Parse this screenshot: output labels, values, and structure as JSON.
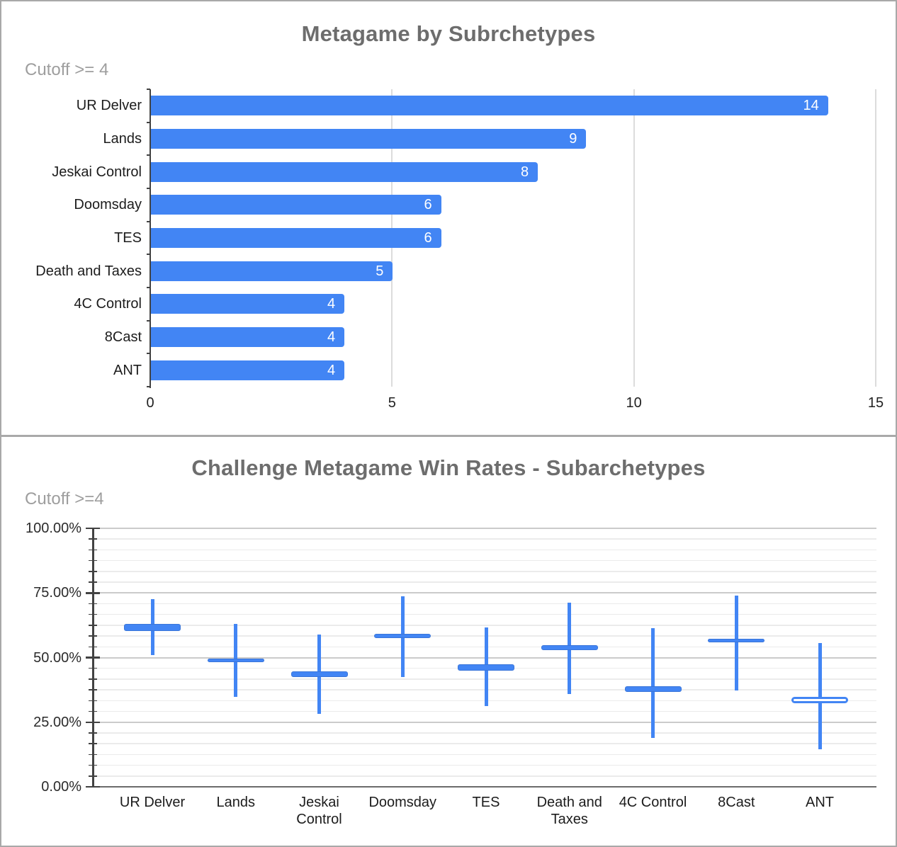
{
  "colors": {
    "accent_blue": "#4285f4",
    "candle_border": "#3b76d9",
    "title": "#6d6d6d",
    "subtitle": "#9e9e9e",
    "axis_text": "#212121",
    "axis_line": "#424242",
    "grid_minor": "#ebebeb",
    "grid_major": "#cbcbcb",
    "grid_light_top": "#dcdcdc",
    "baseline": "#6b6b6b",
    "bar_value_text": "#ffffff",
    "panel_border": "#a9a9a9"
  },
  "chart_data": [
    {
      "type": "bar",
      "orientation": "horizontal",
      "title": "Metagame by Subrchetypes",
      "subtitle": "Cutoff >= 4",
      "categories": [
        "UR Delver",
        "Lands",
        "Jeskai Control",
        "Doomsday",
        "TES",
        "Death and Taxes",
        "4C Control",
        "8Cast",
        "ANT"
      ],
      "values": [
        14,
        9,
        8,
        6,
        6,
        5,
        4,
        4,
        4
      ],
      "xlabel": "",
      "ylabel": "",
      "xlim": [
        0,
        15
      ],
      "x_ticks": [
        0,
        5,
        10,
        15
      ],
      "grid": true,
      "value_labels_inside_bars": true
    },
    {
      "type": "candlestick",
      "title": "Challenge Metagame Win Rates - Subarchetypes",
      "subtitle": "Cutoff >=4",
      "categories": [
        "UR Delver",
        "Lands",
        "Jeskai Control",
        "Doomsday",
        "TES",
        "Death and Taxes",
        "4C Control",
        "8Cast",
        "ANT"
      ],
      "series": [
        {
          "name": "UR Delver",
          "low": 51.0,
          "box_low": 60.4,
          "box_high": 63.1,
          "high": 72.7,
          "hollow": false
        },
        {
          "name": "Lands",
          "low": 34.8,
          "box_low": 48.1,
          "box_high": 49.5,
          "high": 63.0,
          "hollow": false
        },
        {
          "name": "Jeskai Control",
          "low": 28.1,
          "box_low": 42.4,
          "box_high": 44.6,
          "high": 58.9,
          "hollow": false
        },
        {
          "name": "Doomsday",
          "low": 42.5,
          "box_low": 57.5,
          "box_high": 59.3,
          "high": 73.6,
          "hollow": false
        },
        {
          "name": "TES",
          "low": 31.1,
          "box_low": 45.0,
          "box_high": 47.3,
          "high": 61.6,
          "hollow": false
        },
        {
          "name": "Death and Taxes",
          "low": 35.8,
          "box_low": 52.8,
          "box_high": 54.9,
          "high": 71.2,
          "hollow": false
        },
        {
          "name": "4C Control",
          "low": 19.0,
          "box_low": 36.8,
          "box_high": 38.9,
          "high": 61.5,
          "hollow": false
        },
        {
          "name": "8Cast",
          "low": 37.2,
          "box_low": 55.9,
          "box_high": 57.3,
          "high": 73.9,
          "hollow": false
        },
        {
          "name": "ANT",
          "low": 14.4,
          "box_low": 32.2,
          "box_high": 34.9,
          "high": 55.5,
          "hollow": true
        }
      ],
      "ylim": [
        0,
        100
      ],
      "y_tick_labels": [
        "0.00%",
        "25.00%",
        "50.00%",
        "75.00%",
        "100.00%"
      ],
      "y_major_step_pct": 25,
      "y_minor_divisions_per_major": 6,
      "grid": true,
      "legend": "none"
    }
  ]
}
